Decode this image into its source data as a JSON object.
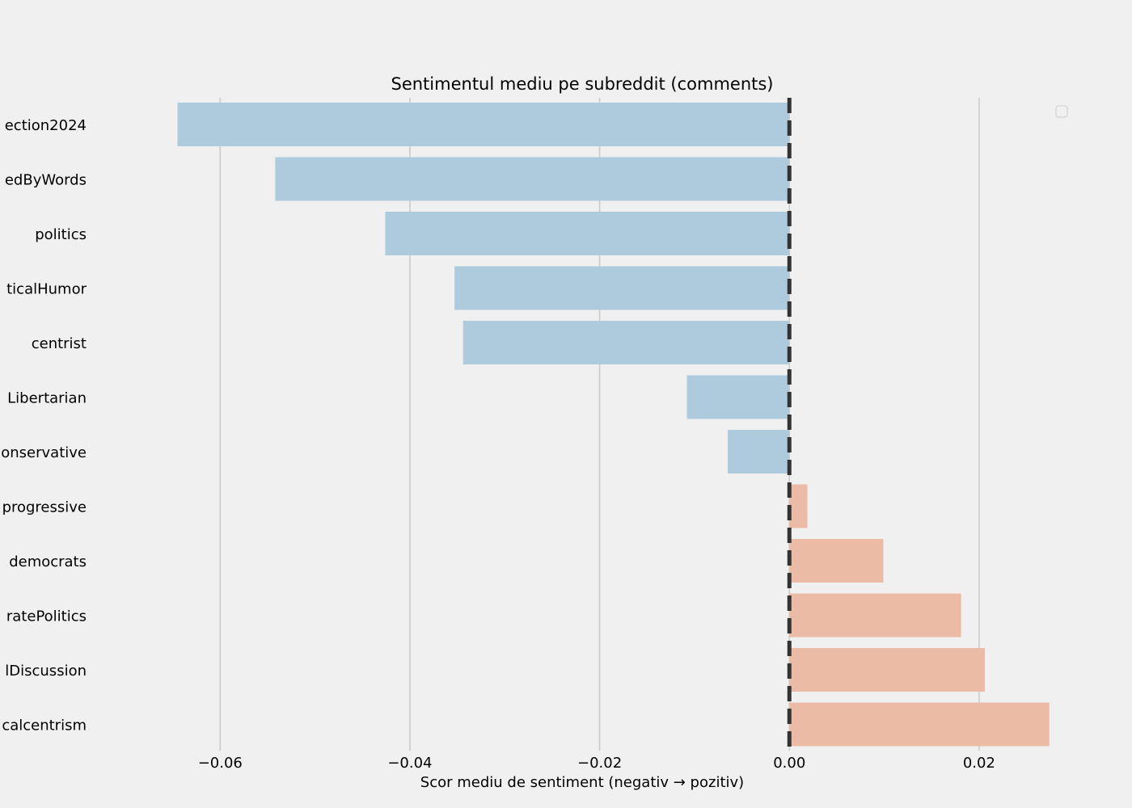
{
  "chart_data": {
    "type": "bar",
    "orientation": "horizontal",
    "title": "Sentimentul mediu pe subreddit (comments)",
    "xlabel": "Scor mediu de sentiment (negativ → pozitiv)",
    "ylabel": "",
    "categories": [
      "ection2024",
      "edByWords",
      "politics",
      "ticalHumor",
      "centrist",
      "Libertarian",
      "onservative",
      "progressive",
      "democrats",
      "ratePolitics",
      "lDiscussion",
      "calcentrism"
    ],
    "values": [
      -0.0645,
      -0.0542,
      -0.0426,
      -0.0353,
      -0.0344,
      -0.0108,
      -0.0065,
      0.0019,
      0.0099,
      0.0181,
      0.0206,
      0.0274
    ],
    "xlim": [
      -0.0694,
      0.0339
    ],
    "xticks": [
      -0.06,
      -0.04,
      -0.02,
      0.0,
      0.02
    ],
    "xtick_labels": [
      "−0.06",
      "−0.04",
      "−0.02",
      "0.00",
      "0.02"
    ],
    "grid": true,
    "reference_line": {
      "x": 0.0,
      "style": "dashed",
      "color": "#333333"
    },
    "colors": {
      "negative": "#aecbde",
      "positive": "#ebbba5",
      "grid": "#cbcbcb",
      "background": "#f0f0f0"
    },
    "legend": {
      "placement": "top-right",
      "entries": []
    }
  }
}
